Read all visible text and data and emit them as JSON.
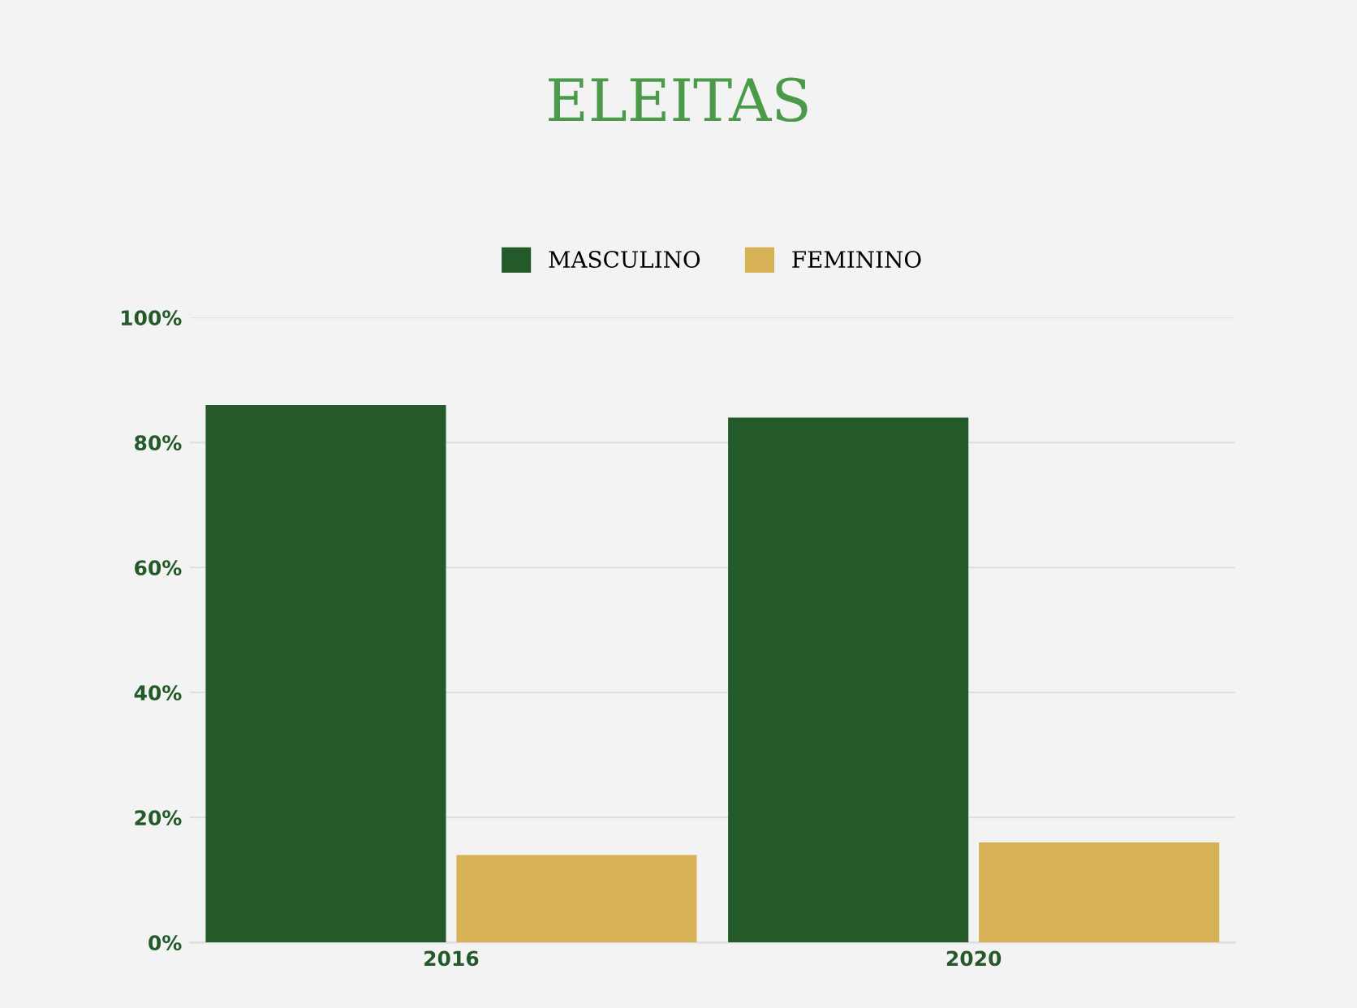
{
  "chart_data": {
    "type": "bar",
    "title": "ELEITAS",
    "categories": [
      "2016",
      "2020"
    ],
    "series": [
      {
        "name": "MASCULINO",
        "color": "#245a2a",
        "values": [
          86,
          84
        ]
      },
      {
        "name": "FEMININO",
        "color": "#d6b156",
        "values": [
          14,
          16
        ]
      }
    ],
    "ylim": [
      0,
      100
    ],
    "yticks": [
      {
        "value": 0,
        "label": "0%"
      },
      {
        "value": 20,
        "label": "20%"
      },
      {
        "value": 40,
        "label": "40%"
      },
      {
        "value": 60,
        "label": "60%"
      },
      {
        "value": 80,
        "label": "80%"
      },
      {
        "value": 100,
        "label": "100%"
      }
    ],
    "grid": "y",
    "legend": "top"
  }
}
